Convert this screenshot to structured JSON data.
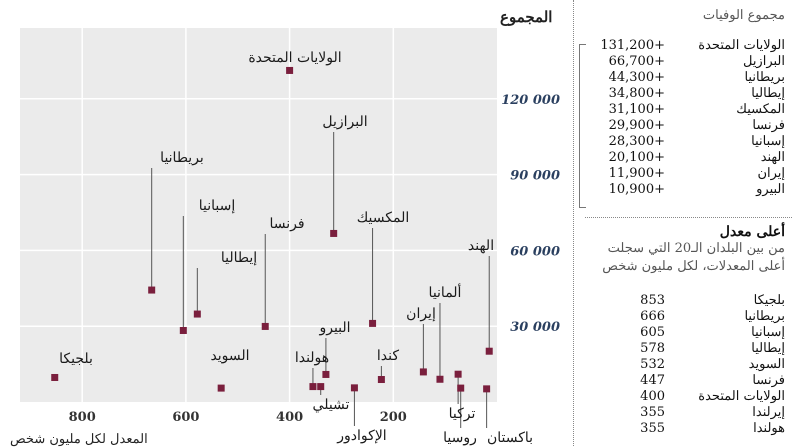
{
  "chart_data": {
    "type": "scatter",
    "title": "",
    "ylabel": "المجموع",
    "xlabel": "المعدل لكل مليون شخص",
    "x_reversed": true,
    "xlim": [
      0,
      920
    ],
    "ylim": [
      0,
      148000
    ],
    "xticks": [
      200,
      400,
      600,
      800
    ],
    "yticks": [
      30000,
      60000,
      90000,
      120000
    ],
    "ytick_labels": [
      "30 000",
      "60 000",
      "90 000",
      "120 000"
    ],
    "grid": true,
    "marker_color": "#7a1f3d",
    "points": [
      {
        "label": "الولايات المتحدة",
        "x": 400,
        "y": 131200
      },
      {
        "label": "البرازيل",
        "x": 315,
        "y": 66700
      },
      {
        "label": "بريطانيا",
        "x": 666,
        "y": 44300
      },
      {
        "label": "إسبانيا",
        "x": 605,
        "y": 28300
      },
      {
        "label": "إيطاليا",
        "x": 578,
        "y": 34800
      },
      {
        "label": "فرنسا",
        "x": 447,
        "y": 29900
      },
      {
        "label": "المكسيك",
        "x": 240,
        "y": 31100
      },
      {
        "label": "الهند",
        "x": 15,
        "y": 20100
      },
      {
        "label": "ألمانيا",
        "x": 110,
        "y": 9000
      },
      {
        "label": "إيران",
        "x": 142,
        "y": 11900
      },
      {
        "label": "كندا",
        "x": 223,
        "y": 8900
      },
      {
        "label": "البيرو",
        "x": 330,
        "y": 10900
      },
      {
        "label": "هولندا",
        "x": 355,
        "y": 6100
      },
      {
        "label": "تشيلي",
        "x": 340,
        "y": 6100
      },
      {
        "label": "الإكوادور",
        "x": 275,
        "y": 5600
      },
      {
        "label": "السويد",
        "x": 532,
        "y": 5500
      },
      {
        "label": "بلجيكا",
        "x": 853,
        "y": 9700
      },
      {
        "label": "تركيا",
        "x": 75,
        "y": 11000
      },
      {
        "label": "روسيا",
        "x": 70,
        "y": 5500
      },
      {
        "label": "باكستان",
        "x": 20,
        "y": 5200
      }
    ]
  },
  "panel": {
    "total_header": "مجموع الوفيات",
    "totals": [
      {
        "country": "الولايات المتحدة",
        "value": "131,200+"
      },
      {
        "country": "البرازيل",
        "value": "66,700+"
      },
      {
        "country": "بريطانيا",
        "value": "44,300+"
      },
      {
        "country": "إيطاليا",
        "value": "34,800+"
      },
      {
        "country": "المكسيك",
        "value": "31,100+"
      },
      {
        "country": "فرنسا",
        "value": "29,900+"
      },
      {
        "country": "إسبانيا",
        "value": "28,300+"
      },
      {
        "country": "الهند",
        "value": "20,100+"
      },
      {
        "country": "إيران",
        "value": "11,900+"
      },
      {
        "country": "البيرو",
        "value": "10,900+"
      }
    ],
    "rate_title": "أعلى معدل",
    "rate_subtitle_1": "من بين البلدان الـ20 التي سجلت",
    "rate_subtitle_2": "أعلى المعدلات، لكل مليون شخص",
    "rates": [
      {
        "country": "بلجيكا",
        "value": "853"
      },
      {
        "country": "بريطانيا",
        "value": "666"
      },
      {
        "country": "إسبانيا",
        "value": "605"
      },
      {
        "country": "إيطاليا",
        "value": "578"
      },
      {
        "country": "السويد",
        "value": "532"
      },
      {
        "country": "فرنسا",
        "value": "447"
      },
      {
        "country": "الولايات المتحدة",
        "value": "400"
      },
      {
        "country": "إيرلندا",
        "value": "355"
      },
      {
        "country": "هولندا",
        "value": "355"
      }
    ]
  }
}
